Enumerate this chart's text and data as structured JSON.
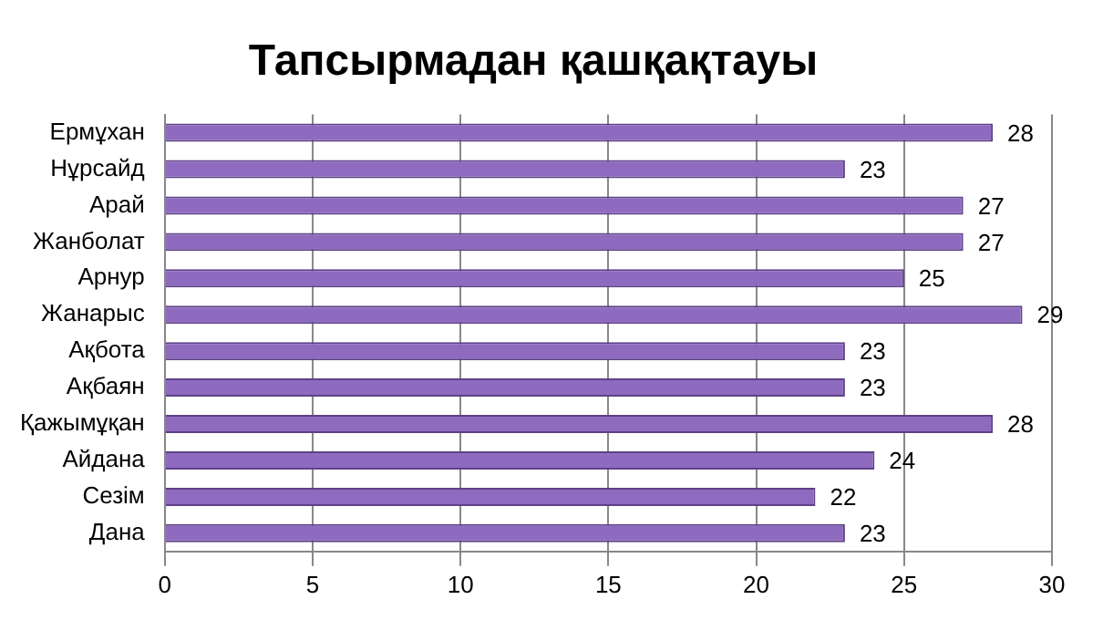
{
  "chart_data": {
    "type": "bar",
    "title": "Тапсырмадан қашқақтауы",
    "orientation": "horizontal",
    "categories": [
      "Ермұхан",
      "Нұрсайд",
      "Арай",
      "Жанболат",
      "Арнур",
      "Жанарыс",
      "Ақбота",
      "Ақбаян",
      "Қажымұқан",
      "Айдана",
      "Сезім",
      "Дана"
    ],
    "values": [
      28,
      23,
      27,
      27,
      25,
      29,
      23,
      23,
      28,
      24,
      22,
      23
    ],
    "color": "#8e6bbf",
    "xlim": [
      0,
      30
    ],
    "xticks": [
      0,
      5,
      10,
      15,
      20,
      25,
      30
    ],
    "grid": "x",
    "data_labels": true
  }
}
